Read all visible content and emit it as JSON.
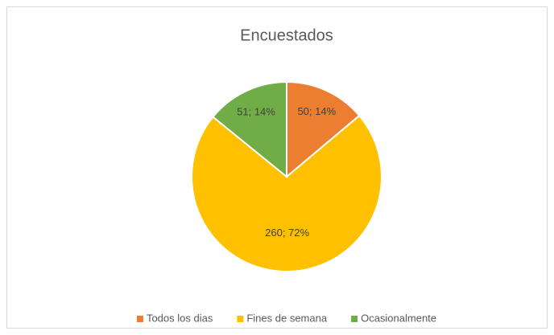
{
  "chart_data": {
    "type": "pie",
    "title": "Encuestados",
    "categories": [
      "Todos los dias",
      "Fines de semana",
      "Ocasionalmente"
    ],
    "values": [
      50,
      260,
      51
    ],
    "value_labels": [
      "50; 14%",
      "260; 72%",
      "51; 14%"
    ],
    "colors": [
      "#ed7d31",
      "#ffc000",
      "#70ad47"
    ],
    "legend": "bottom"
  }
}
